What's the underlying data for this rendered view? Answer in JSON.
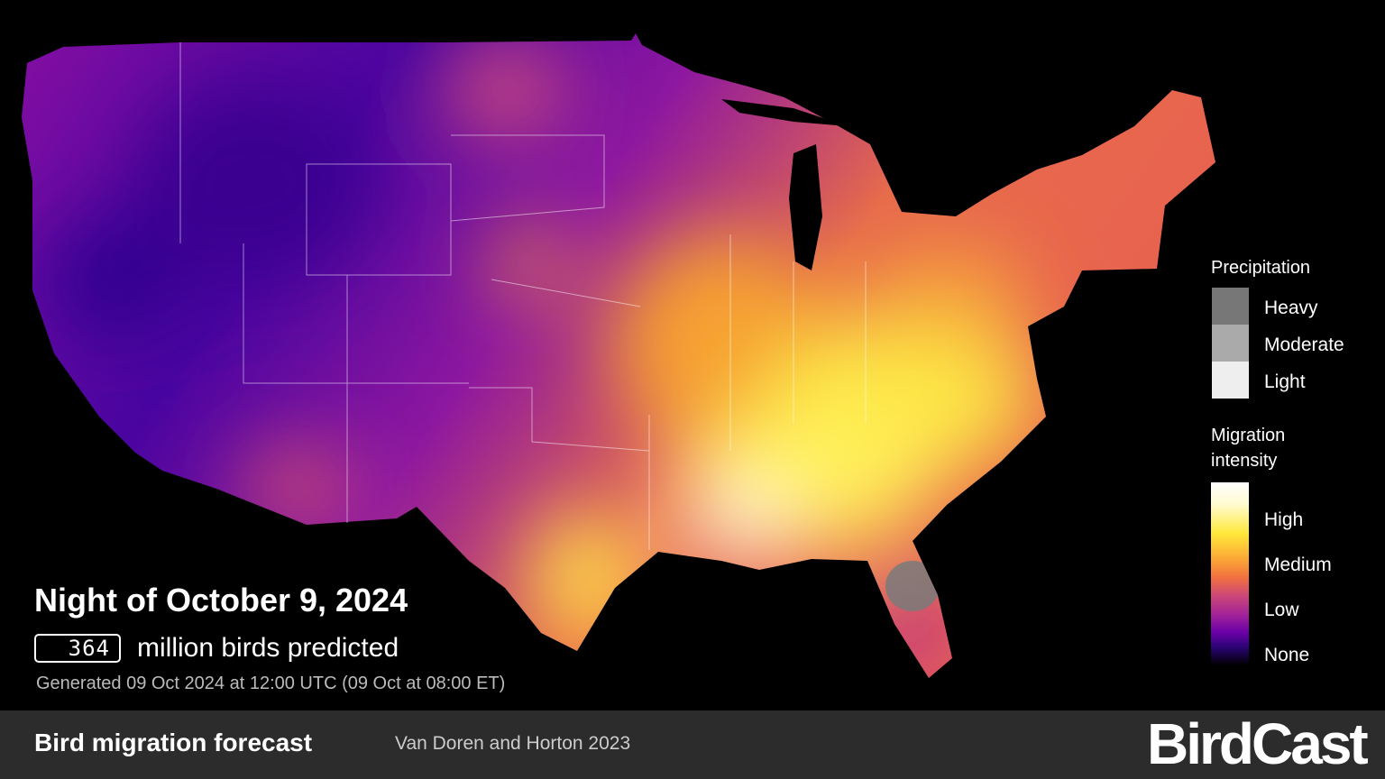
{
  "title": "Night of October 9, 2024",
  "prediction": {
    "count": 364,
    "label": "million birds predicted"
  },
  "generated": "Generated 09 Oct 2024 at 12:00 UTC (09 Oct at 08:00 ET)",
  "legend": {
    "precipitation": {
      "title": "Precipitation",
      "levels": [
        "Heavy",
        "Moderate",
        "Light"
      ]
    },
    "migration": {
      "title": "Migration intensity",
      "levels": [
        "High",
        "Medium",
        "Low",
        "None"
      ]
    }
  },
  "footer": {
    "title": "Bird migration forecast",
    "citation": "Van Doren and Horton 2023",
    "logo": "BirdCast"
  }
}
